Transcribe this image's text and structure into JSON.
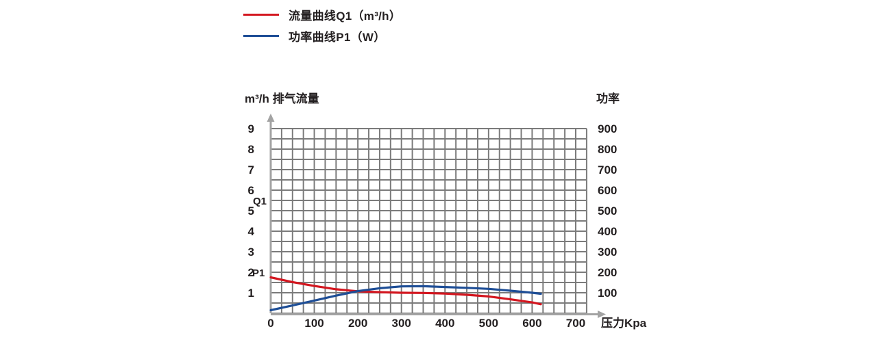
{
  "legend": {
    "items": [
      {
        "id": "q1",
        "label": "流量曲线Q1（m³/h）",
        "color": "#d3161f"
      },
      {
        "id": "p1",
        "label": "功率曲线P1（W）",
        "color": "#1e4e96"
      }
    ]
  },
  "axes": {
    "left_title": "m³/h 排气流量",
    "right_title": "功率",
    "x_title": "压力Kpa",
    "left_ticks": [
      9,
      8,
      7,
      6,
      5,
      4,
      3,
      2,
      1
    ],
    "right_ticks": [
      900,
      800,
      700,
      600,
      500,
      400,
      300,
      200,
      100
    ],
    "x_ticks": [
      0,
      100,
      200,
      300,
      400,
      500,
      600,
      700
    ]
  },
  "annotations": {
    "q1": "Q1",
    "p1": "P1"
  },
  "colors": {
    "grid": "#7b7b7b",
    "axis": "#a3a3a3",
    "text": "#231f20",
    "q1_curve": "#d3161f",
    "p1_curve": "#1e4e96"
  },
  "chart_data": {
    "type": "line",
    "title": "",
    "xlabel": "压力Kpa",
    "ylabel_left": "m³/h 排气流量",
    "ylabel_right": "功率 (W)",
    "x_range": [
      0,
      725
    ],
    "y_left_range": [
      0,
      9
    ],
    "y_right_range": [
      0,
      900
    ],
    "grid": true,
    "legend_position": "top-left",
    "series": [
      {
        "name": "流量曲线Q1（m³/h）",
        "axis": "left",
        "unit": "m³/h",
        "color": "#d3161f",
        "points": [
          [
            0,
            1.75
          ],
          [
            50,
            1.52
          ],
          [
            100,
            1.33
          ],
          [
            150,
            1.17
          ],
          [
            200,
            1.07
          ],
          [
            250,
            1.03
          ],
          [
            300,
            1.0
          ],
          [
            350,
            0.99
          ],
          [
            400,
            0.96
          ],
          [
            450,
            0.9
          ],
          [
            500,
            0.82
          ],
          [
            550,
            0.68
          ],
          [
            600,
            0.53
          ],
          [
            620,
            0.44
          ]
        ]
      },
      {
        "name": "功率曲线P1（W）",
        "axis": "right",
        "unit": "W",
        "color": "#1e4e96",
        "points": [
          [
            0,
            15
          ],
          [
            50,
            38
          ],
          [
            100,
            62
          ],
          [
            150,
            86
          ],
          [
            200,
            108
          ],
          [
            250,
            122
          ],
          [
            300,
            131
          ],
          [
            350,
            132
          ],
          [
            400,
            128
          ],
          [
            450,
            124
          ],
          [
            500,
            119
          ],
          [
            550,
            110
          ],
          [
            600,
            100
          ],
          [
            620,
            95
          ]
        ]
      }
    ]
  }
}
